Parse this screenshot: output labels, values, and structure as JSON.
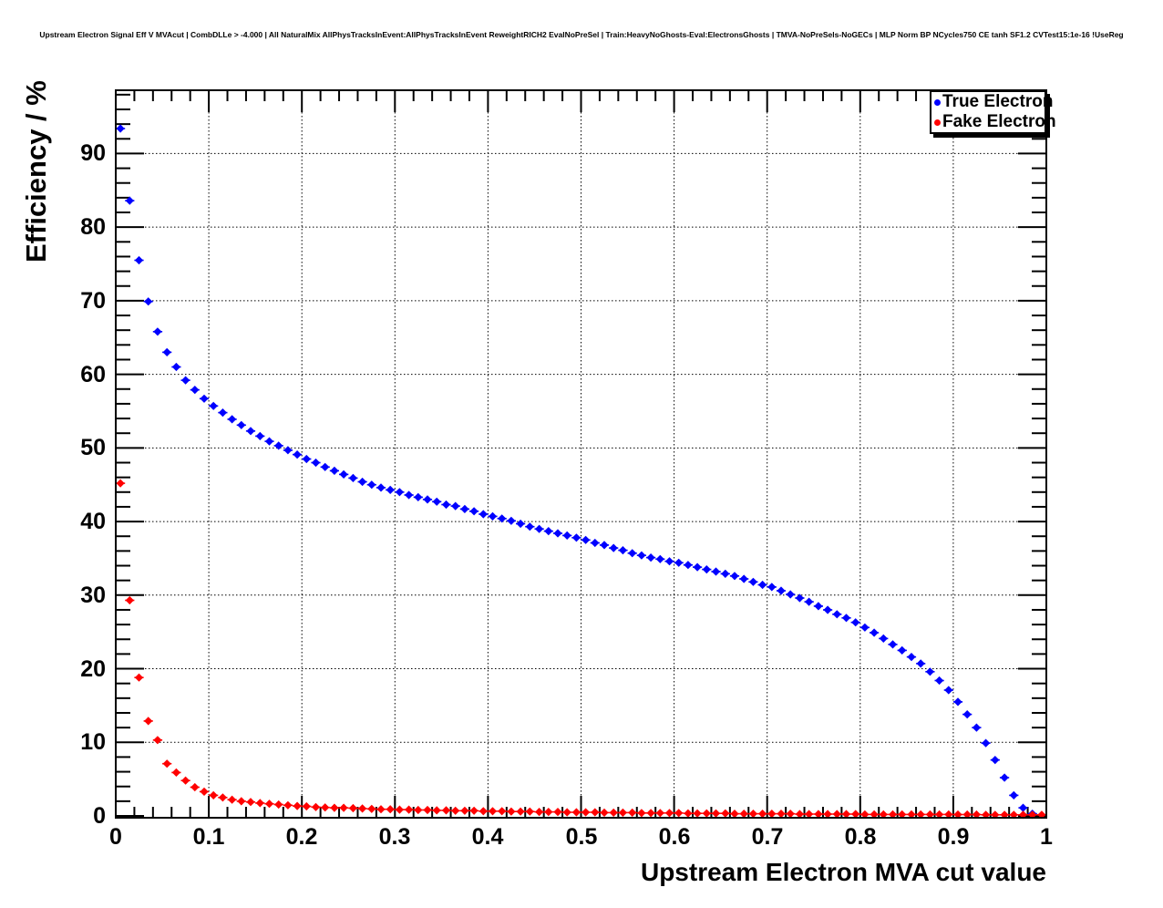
{
  "chart_data": {
    "type": "scatter",
    "title": "Upstream Electron Signal Eff V MVAcut | CombDLLe > -4.000 | All NaturalMix AllPhysTracksInEvent:AllPhysTracksInEvent ReweightRICH2 EvalNoPreSel | Train:HeavyNoGhosts-Eval:ElectronsGhosts | TMVA-NoPreSels-NoGECs | MLP Norm BP NCycles750 CE tanh SF1.2 CVTest15:1e-16 !UseReg",
    "xlabel": "Upstream Electron MVA cut value",
    "ylabel": "Efficiency / %",
    "xlim": [
      0,
      1
    ],
    "ylim": [
      0,
      98.6
    ],
    "grid": true,
    "grid_style": "dotted",
    "legend_position": "top-right",
    "x_ticks": [
      0,
      0.1,
      0.2,
      0.3,
      0.4,
      0.5,
      0.6,
      0.7,
      0.8,
      0.9,
      1
    ],
    "x_tick_labels": [
      "0",
      "0.1",
      "0.2",
      "0.3",
      "0.4",
      "0.5",
      "0.6",
      "0.7",
      "0.8",
      "0.9",
      "1"
    ],
    "x_minor_step": 0.02,
    "y_ticks": [
      0,
      10,
      20,
      30,
      40,
      50,
      60,
      70,
      80,
      90
    ],
    "y_tick_labels": [
      "0",
      "10",
      "20",
      "30",
      "40",
      "50",
      "60",
      "70",
      "80",
      "90"
    ],
    "y_minor_step": 2,
    "series": [
      {
        "id": "true-electron",
        "name": "True Electron",
        "color": "#0000ff",
        "marker": "diamond",
        "xerr": 0.005,
        "x": [
          0.005,
          0.015,
          0.025,
          0.035,
          0.045,
          0.055,
          0.065,
          0.075,
          0.085,
          0.095,
          0.105,
          0.115,
          0.125,
          0.135,
          0.145,
          0.155,
          0.165,
          0.175,
          0.185,
          0.195,
          0.205,
          0.215,
          0.225,
          0.235,
          0.245,
          0.255,
          0.265,
          0.275,
          0.285,
          0.295,
          0.305,
          0.315,
          0.325,
          0.335,
          0.345,
          0.355,
          0.365,
          0.375,
          0.385,
          0.395,
          0.405,
          0.415,
          0.425,
          0.435,
          0.445,
          0.455,
          0.465,
          0.475,
          0.485,
          0.495,
          0.505,
          0.515,
          0.525,
          0.535,
          0.545,
          0.555,
          0.565,
          0.575,
          0.585,
          0.595,
          0.605,
          0.615,
          0.625,
          0.635,
          0.645,
          0.655,
          0.665,
          0.675,
          0.685,
          0.695,
          0.705,
          0.715,
          0.725,
          0.735,
          0.745,
          0.755,
          0.765,
          0.775,
          0.785,
          0.795,
          0.805,
          0.815,
          0.825,
          0.835,
          0.845,
          0.855,
          0.865,
          0.875,
          0.885,
          0.895,
          0.905,
          0.915,
          0.925,
          0.935,
          0.945,
          0.955,
          0.965,
          0.975,
          0.985
        ],
        "y": [
          93.4,
          83.6,
          75.5,
          69.9,
          65.8,
          63.0,
          61.0,
          59.2,
          57.9,
          56.7,
          55.7,
          54.8,
          53.9,
          53.1,
          52.3,
          51.6,
          50.9,
          50.3,
          49.7,
          49.1,
          48.5,
          48.0,
          47.4,
          46.9,
          46.4,
          45.9,
          45.4,
          45.0,
          44.6,
          44.3,
          44.0,
          43.6,
          43.3,
          43.0,
          42.7,
          42.3,
          42.1,
          41.7,
          41.4,
          41.0,
          40.7,
          40.4,
          40.1,
          39.7,
          39.3,
          39.0,
          38.7,
          38.4,
          38.1,
          37.8,
          37.5,
          37.1,
          36.8,
          36.4,
          36.1,
          35.7,
          35.4,
          35.1,
          34.9,
          34.6,
          34.4,
          34.1,
          33.8,
          33.5,
          33.2,
          32.9,
          32.6,
          32.2,
          31.8,
          31.4,
          31.1,
          30.6,
          30.1,
          29.6,
          29.1,
          28.5,
          28.0,
          27.4,
          26.9,
          26.3,
          25.6,
          24.9,
          24.1,
          23.3,
          22.5,
          21.6,
          20.7,
          19.6,
          18.4,
          17.1,
          15.5,
          13.8,
          12.0,
          9.9,
          7.6,
          5.2,
          2.8,
          1.1,
          0.3
        ]
      },
      {
        "id": "fake-electron",
        "name": "Fake Electron",
        "color": "#ff0000",
        "marker": "diamond",
        "xerr": 0.005,
        "x": [
          0.005,
          0.015,
          0.025,
          0.035,
          0.045,
          0.055,
          0.065,
          0.075,
          0.085,
          0.095,
          0.105,
          0.115,
          0.125,
          0.135,
          0.145,
          0.155,
          0.165,
          0.175,
          0.185,
          0.195,
          0.205,
          0.215,
          0.225,
          0.235,
          0.245,
          0.255,
          0.265,
          0.275,
          0.285,
          0.295,
          0.305,
          0.315,
          0.325,
          0.335,
          0.345,
          0.355,
          0.365,
          0.375,
          0.385,
          0.395,
          0.405,
          0.415,
          0.425,
          0.435,
          0.445,
          0.455,
          0.465,
          0.475,
          0.485,
          0.495,
          0.505,
          0.515,
          0.525,
          0.535,
          0.545,
          0.555,
          0.565,
          0.575,
          0.585,
          0.595,
          0.605,
          0.615,
          0.625,
          0.635,
          0.645,
          0.655,
          0.665,
          0.675,
          0.685,
          0.695,
          0.705,
          0.715,
          0.725,
          0.735,
          0.745,
          0.755,
          0.765,
          0.775,
          0.785,
          0.795,
          0.805,
          0.815,
          0.825,
          0.835,
          0.845,
          0.855,
          0.865,
          0.875,
          0.885,
          0.895,
          0.905,
          0.915,
          0.925,
          0.935,
          0.945,
          0.955,
          0.965,
          0.975,
          0.985,
          0.995
        ],
        "y": [
          45.2,
          29.3,
          18.8,
          12.9,
          10.3,
          7.1,
          5.9,
          4.8,
          3.9,
          3.3,
          2.8,
          2.5,
          2.2,
          2.0,
          1.9,
          1.75,
          1.65,
          1.55,
          1.45,
          1.35,
          1.3,
          1.2,
          1.15,
          1.1,
          1.1,
          1.05,
          1.0,
          0.95,
          0.9,
          0.9,
          0.85,
          0.85,
          0.8,
          0.8,
          0.75,
          0.75,
          0.7,
          0.7,
          0.7,
          0.65,
          0.65,
          0.65,
          0.6,
          0.6,
          0.6,
          0.55,
          0.55,
          0.55,
          0.5,
          0.5,
          0.5,
          0.5,
          0.45,
          0.45,
          0.45,
          0.45,
          0.4,
          0.4,
          0.4,
          0.4,
          0.4,
          0.35,
          0.35,
          0.35,
          0.35,
          0.35,
          0.3,
          0.3,
          0.3,
          0.3,
          0.3,
          0.3,
          0.3,
          0.25,
          0.25,
          0.25,
          0.25,
          0.25,
          0.25,
          0.25,
          0.2,
          0.2,
          0.2,
          0.2,
          0.2,
          0.2,
          0.2,
          0.2,
          0.2,
          0.2,
          0.18,
          0.18,
          0.18,
          0.15,
          0.15,
          0.15,
          0.15,
          0.15,
          0.15,
          0.15
        ]
      }
    ]
  }
}
